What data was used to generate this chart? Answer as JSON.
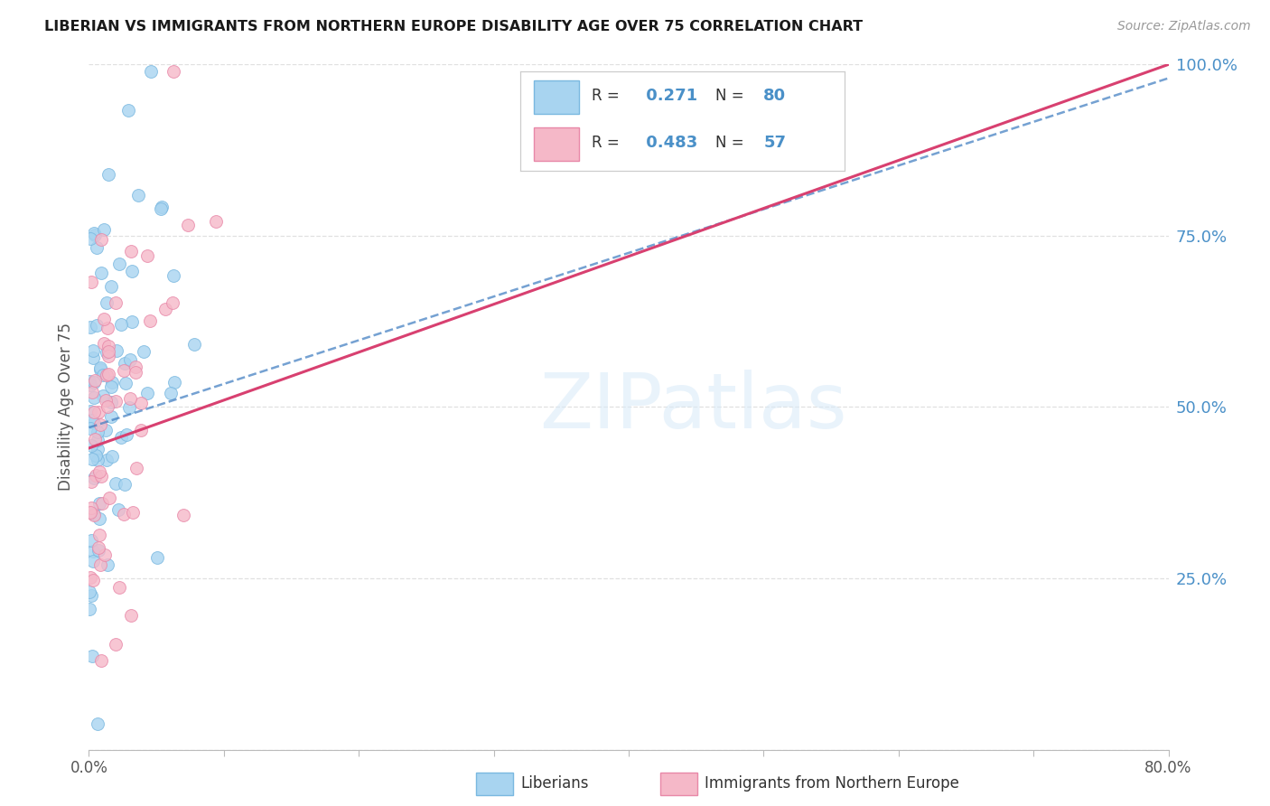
{
  "title": "LIBERIAN VS IMMIGRANTS FROM NORTHERN EUROPE DISABILITY AGE OVER 75 CORRELATION CHART",
  "source": "Source: ZipAtlas.com",
  "ylabel": "Disability Age Over 75",
  "xlim": [
    0,
    80
  ],
  "ylim": [
    0,
    100
  ],
  "liberian_color_fill": "#a8d4f0",
  "liberian_color_edge": "#7ab8e0",
  "liberian_line_color": "#3a7abf",
  "ne_color_fill": "#f5b8c8",
  "ne_color_edge": "#e888a8",
  "ne_line_color": "#d84070",
  "liberian_R": 0.271,
  "liberian_N": 80,
  "ne_R": 0.483,
  "ne_N": 57,
  "legend_label_1": "Liberians",
  "legend_label_2": "Immigrants from Northern Europe",
  "watermark": "ZIPatlas",
  "right_tick_color": "#4a90c8",
  "title_fontsize": 11.5,
  "source_fontsize": 10,
  "ytick_right_labels": [
    "",
    "25.0%",
    "50.0%",
    "75.0%",
    "100.0%"
  ],
  "ytick_right_values": [
    0,
    25,
    50,
    75,
    100
  ],
  "xtick_labels": [
    "0.0%",
    "",
    "",
    "",
    "",
    "",
    "",
    "",
    "80.0%"
  ],
  "xtick_values": [
    0,
    10,
    20,
    30,
    40,
    50,
    60,
    70,
    80
  ],
  "lib_line_x0": 0,
  "lib_line_y0": 47,
  "lib_line_x1": 80,
  "lib_line_y1": 98,
  "ne_line_x0": 0,
  "ne_line_y0": 44,
  "ne_line_x1": 80,
  "ne_line_y1": 100
}
